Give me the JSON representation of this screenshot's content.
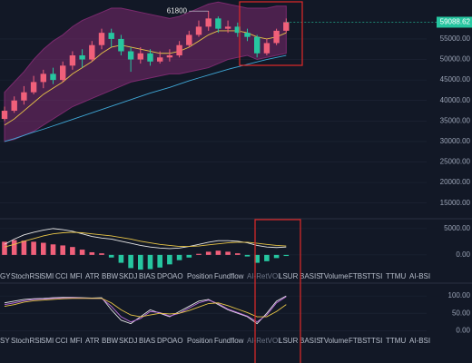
{
  "price_panel": {
    "type": "candlestick",
    "ylim": [
      11400,
      64500
    ],
    "yticks": [
      {
        "value": 55000,
        "label": "55000.00"
      },
      {
        "value": 50000,
        "label": "50000.00"
      },
      {
        "value": 45000,
        "label": "45000.00"
      },
      {
        "value": 40000,
        "label": "40000.00"
      },
      {
        "value": 35000,
        "label": "35000.00"
      },
      {
        "value": 30000,
        "label": "30000.00"
      },
      {
        "value": 25000,
        "label": "25000.00"
      },
      {
        "value": 20000,
        "label": "20000.00"
      },
      {
        "value": 15000,
        "label": "15000.00"
      }
    ],
    "up_color": "#f0607a",
    "down_color": "#26c6a0",
    "open": [
      35500,
      37500,
      40000,
      42000,
      44500,
      46500,
      45000,
      48500,
      51000,
      50000,
      53500,
      56500,
      55000,
      52000,
      50000,
      51500,
      49500,
      50500,
      51000,
      53500,
      56000,
      58000,
      60000,
      57500,
      58000,
      56500,
      55500,
      51500,
      54000,
      57000
    ],
    "close": [
      37500,
      40000,
      42000,
      44500,
      46500,
      45000,
      48500,
      51000,
      50000,
      53500,
      56500,
      55000,
      52000,
      50000,
      51500,
      49500,
      50500,
      51000,
      53500,
      56000,
      58000,
      60000,
      57500,
      58000,
      56500,
      55500,
      51500,
      54000,
      57000,
      59088.62
    ],
    "high": [
      38500,
      41000,
      43500,
      46000,
      47500,
      48000,
      49500,
      52000,
      52500,
      54500,
      57500,
      57500,
      56000,
      53000,
      53000,
      52500,
      52000,
      52500,
      54500,
      57000,
      59500,
      61800,
      60500,
      59500,
      59000,
      57500,
      56000,
      55000,
      57500,
      60000
    ],
    "low": [
      35000,
      37000,
      39000,
      41500,
      43000,
      44000,
      44500,
      47500,
      48000,
      49500,
      52500,
      53000,
      51000,
      47000,
      49000,
      48500,
      49000,
      49500,
      50500,
      53000,
      55500,
      57000,
      56500,
      56500,
      55500,
      54500,
      50500,
      51000,
      53500,
      56500
    ],
    "band_color": "#7a2a6e",
    "upper_band": [
      42000,
      44500,
      47000,
      50000,
      52500,
      54500,
      56000,
      58000,
      59500,
      60500,
      61500,
      62500,
      62500,
      62000,
      61500,
      61000,
      60500,
      60000,
      60500,
      61500,
      62500,
      63500,
      64000,
      63500,
      63000,
      62500,
      62500,
      62500,
      63000,
      63000
    ],
    "lower_band": [
      30000,
      30500,
      31500,
      32500,
      34000,
      35500,
      37000,
      38500,
      39500,
      40500,
      41500,
      42500,
      43500,
      44500,
      45000,
      45500,
      46000,
      46500,
      46500,
      47000,
      47500,
      48000,
      49000,
      50000,
      50500,
      51000,
      50000,
      50500,
      51000,
      51500
    ],
    "lines": [
      {
        "color": "#e8c547",
        "values": [
          34000,
          35500,
          37500,
          39500,
          41500,
          43000,
          44500,
          46500,
          48000,
          49500,
          51500,
          53000,
          53500,
          53000,
          52500,
          52000,
          51500,
          51500,
          52000,
          53000,
          54500,
          56000,
          57000,
          57000,
          57000,
          56500,
          55500,
          55000,
          55500,
          56500
        ]
      },
      {
        "color": "#3fa7d6",
        "values": [
          30000,
          30700,
          31500,
          32300,
          33000,
          33800,
          34600,
          35400,
          36200,
          37000,
          37800,
          38600,
          39400,
          40200,
          41000,
          41800,
          42500,
          43200,
          44000,
          44800,
          45500,
          46200,
          46900,
          47600,
          48200,
          48800,
          49400,
          50000,
          50500,
          51000
        ]
      }
    ],
    "high_marker": 61800,
    "last_price": 59088.62,
    "last_price_color": "#26c6a0"
  },
  "macd_panel": {
    "type": "histogram",
    "ylim": [
      -2950,
      6700
    ],
    "yticks": [
      {
        "value": 5000,
        "label": "5000.00"
      },
      {
        "value": 0,
        "label": "0.00"
      }
    ],
    "histogram": [
      2500,
      2800,
      2700,
      2500,
      2300,
      2000,
      1800,
      1500,
      1000,
      500,
      300,
      -500,
      -1500,
      -2500,
      -2800,
      -2700,
      -2400,
      -1800,
      -1000,
      -500,
      200,
      600,
      800,
      600,
      300,
      -300,
      -1500,
      -1200,
      -600,
      -200
    ],
    "lines": [
      {
        "color": "#e6e6e6",
        "values": [
          2000,
          3000,
          3800,
          4300,
          4700,
          5000,
          4800,
          4500,
          4000,
          3500,
          3200,
          3000,
          2600,
          2200,
          1800,
          1500,
          1300,
          1200,
          1300,
          1600,
          2000,
          2400,
          2700,
          2700,
          2600,
          2300,
          1800,
          1500,
          1400,
          1500
        ]
      },
      {
        "color": "#e8c547",
        "values": [
          1500,
          2000,
          2600,
          3100,
          3600,
          4000,
          4200,
          4300,
          4200,
          4000,
          3800,
          3600,
          3300,
          3000,
          2600,
          2300,
          2000,
          1800,
          1600,
          1600,
          1700,
          1900,
          2100,
          2300,
          2400,
          2400,
          2200,
          2000,
          1800,
          1700
        ]
      }
    ]
  },
  "rsi_panel": {
    "type": "lines",
    "ylim": [
      -15,
      137
    ],
    "yticks": [
      {
        "value": 100,
        "label": "100.00"
      },
      {
        "value": 50,
        "label": "50.00"
      },
      {
        "value": 0,
        "label": "0.00"
      }
    ],
    "lines": [
      {
        "color": "#e6e6e6",
        "values": [
          80,
          85,
          90,
          92,
          93,
          95,
          96,
          96,
          95,
          94,
          95,
          60,
          30,
          20,
          40,
          60,
          50,
          40,
          55,
          70,
          85,
          90,
          75,
          60,
          50,
          40,
          20,
          50,
          85,
          100
        ]
      },
      {
        "color": "#c070e0",
        "values": [
          75,
          80,
          86,
          90,
          91,
          93,
          94,
          95,
          94,
          93,
          93,
          70,
          40,
          25,
          35,
          55,
          52,
          42,
          50,
          65,
          80,
          88,
          78,
          62,
          52,
          42,
          25,
          45,
          80,
          98
        ]
      },
      {
        "color": "#e8c547",
        "values": [
          70,
          75,
          82,
          86,
          88,
          90,
          92,
          93,
          93,
          93,
          93,
          80,
          60,
          45,
          40,
          45,
          50,
          48,
          50,
          58,
          68,
          78,
          80,
          72,
          62,
          52,
          40,
          40,
          55,
          75
        ]
      }
    ]
  },
  "tabs": {
    "row1": [
      "GY",
      "StochRSI",
      "SMI",
      "CCI",
      "MFI",
      "ATR",
      "BBW",
      "SKDJ",
      "BIAS",
      "DPO",
      "AO",
      "Position",
      "Fundflow",
      "AI-RetVOL",
      "LSUR",
      "BASIS",
      "TVolume",
      "FTBS",
      "TTSI",
      "TTMU",
      "AI-BSI"
    ],
    "row2": [
      "SY",
      "StochRSI",
      "SMI",
      "CCI",
      "MFI",
      "ATR",
      "BBW",
      "SKDJ",
      "BIAS",
      "DPO",
      "AO",
      "Position",
      "Fundflow",
      "AI-RetVOL",
      "LSUR",
      "BASIS",
      "TVolume",
      "FTBS",
      "TTSI",
      "TTMU",
      "AI-BSI"
    ]
  }
}
